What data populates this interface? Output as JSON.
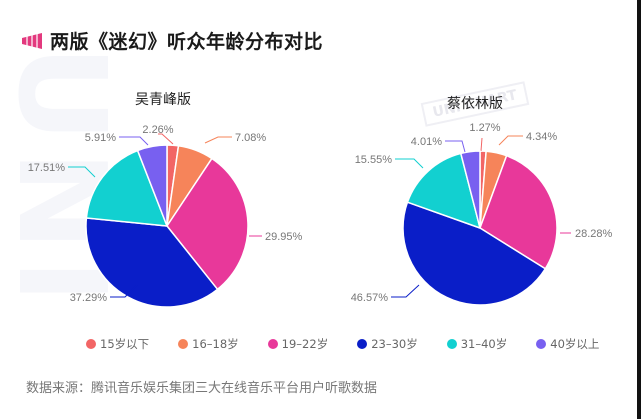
{
  "header": {
    "title": "两版《迷幻》听众年龄分布对比",
    "icon": "megaphone-bars-icon",
    "accent": "#e3397e"
  },
  "watermark": {
    "text": "UNI CHART"
  },
  "chart_data": [
    {
      "type": "pie",
      "title": "吴青峰版",
      "categories": [
        "15岁以下",
        "16-18岁",
        "19-22岁",
        "23-30岁",
        "31-40岁",
        "40岁以上"
      ],
      "values": [
        2.26,
        7.08,
        29.95,
        37.29,
        17.51,
        5.91
      ],
      "labels": [
        "2.26%",
        "7.08%",
        "29.95%",
        "37.29%",
        "17.51%",
        "5.91%"
      ],
      "colors": [
        "#f26565",
        "#f6845a",
        "#e8389a",
        "#0a1ec8",
        "#12d0d0",
        "#7860f0"
      ]
    },
    {
      "type": "pie",
      "title": "蔡依林版",
      "categories": [
        "15岁以下",
        "16-18岁",
        "19-22岁",
        "23-30岁",
        "31-40岁",
        "40岁以上"
      ],
      "values": [
        1.27,
        4.34,
        28.28,
        46.57,
        15.55,
        4.01
      ],
      "labels": [
        "1.27%",
        "4.34%",
        "28.28%",
        "46.57%",
        "15.55%",
        "4.01%"
      ],
      "colors": [
        "#f26565",
        "#f6845a",
        "#e8389a",
        "#0a1ec8",
        "#12d0d0",
        "#7860f0"
      ]
    }
  ],
  "legend": {
    "items": [
      {
        "label": "15岁以下",
        "color": "#f26565"
      },
      {
        "label": "16–18岁",
        "color": "#f6845a"
      },
      {
        "label": "19–22岁",
        "color": "#e8389a"
      },
      {
        "label": "23–30岁",
        "color": "#0a1ec8"
      },
      {
        "label": "31–40岁",
        "color": "#12d0d0"
      },
      {
        "label": "40岁以上",
        "color": "#7860f0"
      }
    ]
  },
  "footer": {
    "source": "数据来源：腾讯音乐娱乐集团三大在线音乐平台用户听歌数据"
  }
}
